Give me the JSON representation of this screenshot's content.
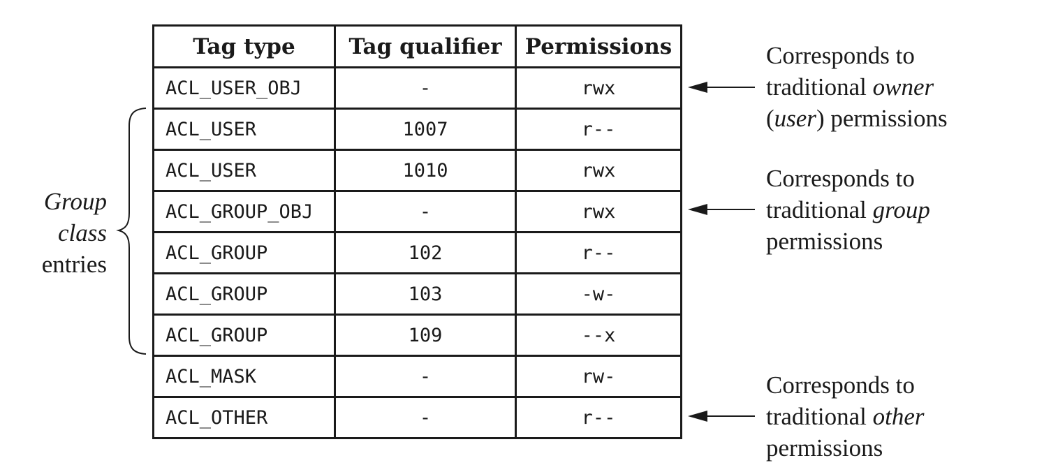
{
  "table": {
    "headers": [
      "Tag type",
      "Tag qualifier",
      "Permissions"
    ],
    "rows": [
      {
        "tag": "ACL_USER_OBJ",
        "qualifier": "-",
        "permissions": "rwx"
      },
      {
        "tag": "ACL_USER",
        "qualifier": "1007",
        "permissions": "r--"
      },
      {
        "tag": "ACL_USER",
        "qualifier": "1010",
        "permissions": "rwx"
      },
      {
        "tag": "ACL_GROUP_OBJ",
        "qualifier": "-",
        "permissions": "rwx"
      },
      {
        "tag": "ACL_GROUP",
        "qualifier": "102",
        "permissions": "r--"
      },
      {
        "tag": "ACL_GROUP",
        "qualifier": "103",
        "permissions": "-w-"
      },
      {
        "tag": "ACL_GROUP",
        "qualifier": "109",
        "permissions": "--x"
      },
      {
        "tag": "ACL_MASK",
        "qualifier": "-",
        "permissions": "rw-"
      },
      {
        "tag": "ACL_OTHER",
        "qualifier": "-",
        "permissions": "r--"
      }
    ]
  },
  "group_label": {
    "line1": "Group",
    "line2": "class",
    "line3": "entries"
  },
  "annotations": {
    "owner": {
      "line1": "Corresponds to",
      "line2_prefix": "traditional ",
      "line2_italic": "owner",
      "line3_italic": "user",
      "line3_suffix": " permissions"
    },
    "group": {
      "line1": "Corresponds to",
      "line2_prefix": "traditional ",
      "line2_italic": "group",
      "line3": "permissions"
    },
    "other": {
      "line1": "Corresponds to",
      "line2_prefix": "traditional ",
      "line2_italic": "other",
      "line3": "permissions"
    }
  }
}
